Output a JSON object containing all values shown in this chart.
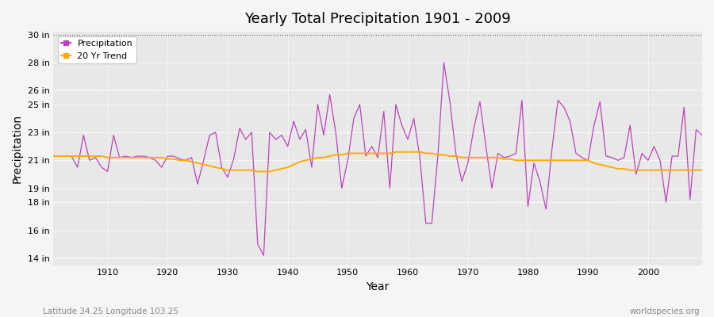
{
  "title": "Yearly Total Precipitation 1901 - 2009",
  "xlabel": "Year",
  "ylabel": "Precipitation",
  "lat_lon_label": "Latitude 34.25 Longitude 103.25",
  "source_label": "worldspecies.org",
  "background_color": "#f5f5f5",
  "plot_bg_color": "#e8e8e8",
  "precip_color": "#bb44bb",
  "trend_color": "#ffaa00",
  "ylim": [
    13.5,
    30.2
  ],
  "ytick_vals": [
    14,
    16,
    18,
    19,
    21,
    23,
    25,
    26,
    28,
    30
  ],
  "ytick_labels": [
    "14 in",
    "16 in",
    "18 in",
    "19 in",
    "21 in",
    "23 in",
    "25 in",
    "26 in",
    "28 in",
    "30 in"
  ],
  "xlim": [
    1901,
    2009
  ],
  "decade_ticks": [
    1910,
    1920,
    1930,
    1940,
    1950,
    1960,
    1970,
    1980,
    1990,
    2000
  ],
  "years": [
    1901,
    1902,
    1903,
    1904,
    1905,
    1906,
    1907,
    1908,
    1909,
    1910,
    1911,
    1912,
    1913,
    1914,
    1915,
    1916,
    1917,
    1918,
    1919,
    1920,
    1921,
    1922,
    1923,
    1924,
    1925,
    1926,
    1927,
    1928,
    1929,
    1930,
    1931,
    1932,
    1933,
    1934,
    1935,
    1936,
    1937,
    1938,
    1939,
    1940,
    1941,
    1942,
    1943,
    1944,
    1945,
    1946,
    1947,
    1948,
    1949,
    1950,
    1951,
    1952,
    1953,
    1954,
    1955,
    1956,
    1957,
    1958,
    1959,
    1960,
    1961,
    1962,
    1963,
    1964,
    1965,
    1966,
    1967,
    1968,
    1969,
    1970,
    1971,
    1972,
    1973,
    1974,
    1975,
    1976,
    1977,
    1978,
    1979,
    1980,
    1981,
    1982,
    1983,
    1984,
    1985,
    1986,
    1987,
    1988,
    1989,
    1990,
    1991,
    1992,
    1993,
    1994,
    1995,
    1996,
    1997,
    1998,
    1999,
    2000,
    2001,
    2002,
    2003,
    2004,
    2005,
    2006,
    2007,
    2008,
    2009
  ],
  "precip": [
    21.3,
    21.3,
    21.3,
    21.3,
    20.5,
    22.8,
    21.0,
    21.2,
    20.5,
    20.2,
    22.8,
    21.2,
    21.3,
    21.2,
    21.3,
    21.3,
    21.2,
    21.0,
    20.5,
    21.3,
    21.3,
    21.1,
    21.0,
    21.2,
    19.3,
    21.0,
    22.8,
    23.0,
    20.5,
    19.8,
    21.1,
    23.3,
    22.5,
    23.0,
    15.0,
    14.2,
    23.0,
    22.5,
    22.8,
    22.0,
    23.8,
    22.5,
    23.2,
    20.5,
    25.0,
    22.8,
    25.7,
    23.0,
    19.0,
    21.0,
    24.0,
    25.0,
    21.3,
    22.0,
    21.2,
    24.5,
    19.0,
    25.0,
    23.5,
    22.5,
    24.0,
    21.2,
    16.5,
    16.5,
    21.3,
    28.0,
    25.2,
    21.5,
    19.5,
    20.8,
    23.3,
    25.2,
    22.0,
    19.0,
    21.5,
    21.2,
    21.3,
    21.5,
    25.3,
    17.7,
    20.8,
    19.5,
    17.5,
    21.8,
    25.3,
    24.8,
    23.8,
    21.5,
    21.2,
    21.0,
    23.5,
    25.2,
    21.3,
    21.2,
    21.0,
    21.2,
    23.5,
    20.0,
    21.5,
    21.0,
    22.0,
    21.0,
    18.0,
    21.3,
    21.3,
    24.8,
    18.2,
    23.2,
    22.8
  ],
  "trend": [
    21.3,
    21.3,
    21.3,
    21.3,
    21.3,
    21.3,
    21.3,
    21.3,
    21.3,
    21.2,
    21.2,
    21.2,
    21.2,
    21.2,
    21.2,
    21.2,
    21.2,
    21.2,
    21.2,
    21.1,
    21.1,
    21.0,
    21.0,
    20.9,
    20.8,
    20.7,
    20.6,
    20.5,
    20.4,
    20.3,
    20.3,
    20.3,
    20.3,
    20.3,
    20.2,
    20.2,
    20.2,
    20.3,
    20.4,
    20.5,
    20.7,
    20.9,
    21.0,
    21.1,
    21.2,
    21.2,
    21.3,
    21.4,
    21.4,
    21.5,
    21.5,
    21.5,
    21.5,
    21.5,
    21.5,
    21.5,
    21.5,
    21.6,
    21.6,
    21.6,
    21.6,
    21.6,
    21.5,
    21.5,
    21.4,
    21.4,
    21.3,
    21.3,
    21.2,
    21.2,
    21.2,
    21.2,
    21.2,
    21.2,
    21.2,
    21.1,
    21.1,
    21.0,
    21.0,
    21.0,
    21.0,
    21.0,
    21.0,
    21.0,
    21.0,
    21.0,
    21.0,
    21.0,
    21.0,
    21.0,
    20.8,
    20.7,
    20.6,
    20.5,
    20.4,
    20.4,
    20.3,
    20.3,
    20.3,
    20.3,
    20.3,
    20.3,
    20.3,
    20.3,
    20.3,
    20.3,
    20.3,
    20.3,
    20.3
  ]
}
